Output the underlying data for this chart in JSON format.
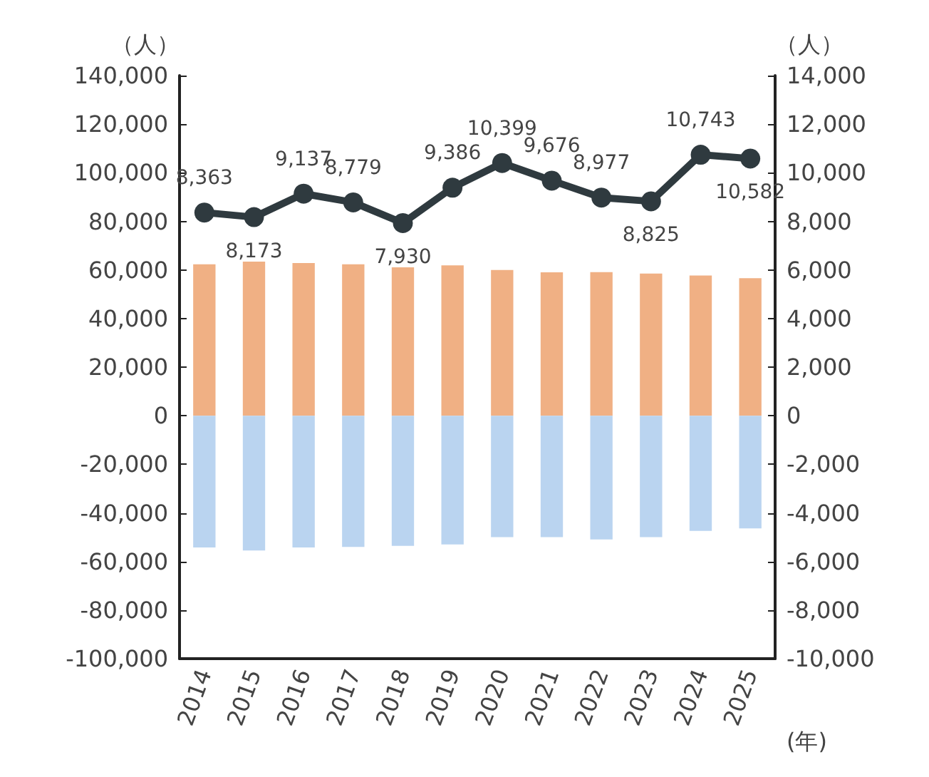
{
  "chart_data": {
    "type": "bar",
    "ylabel": "（人）",
    "y2label": "（人）",
    "xlabel": "(年)",
    "stacked": true,
    "categories": [
      "2014",
      "2015",
      "2016",
      "2017",
      "2018",
      "2019",
      "2020",
      "2021",
      "2022",
      "2023",
      "2024",
      "2025"
    ],
    "series": [
      {
        "color": "#f0b084",
        "values": [
          62300,
          63400,
          62800,
          62300,
          61100,
          61900,
          60000,
          59000,
          59100,
          58500,
          57700,
          56600
        ]
      },
      {
        "color": "#bad4f0",
        "values": [
          -54200,
          -55500,
          -54200,
          -54000,
          -53600,
          -53000,
          -50000,
          -50000,
          -50900,
          -50000,
          -47400,
          -46400
        ]
      },
      {
        "type": "line",
        "axis": "y2",
        "color": "#2f3a3f",
        "marker": "circle",
        "values": [
          8363,
          8173,
          9137,
          8779,
          7930,
          9386,
          10399,
          9676,
          8977,
          8825,
          10743,
          10582
        ],
        "value_labels": [
          "8,363",
          "8,173",
          "9,137",
          "8,779",
          "7,930",
          "9,386",
          "10,399",
          "9,676",
          "8,977",
          "8,825",
          "10,743",
          "10,582"
        ]
      }
    ],
    "ylim": [
      -100000,
      140000
    ],
    "yticks": [
      {
        "value": -100000,
        "label": "-100,000"
      },
      {
        "value": -80000,
        "label": "-80,000"
      },
      {
        "value": -60000,
        "label": "-60,000"
      },
      {
        "value": -40000,
        "label": "-40,000"
      },
      {
        "value": -20000,
        "label": "-20,000"
      },
      0,
      {
        "value": 20000,
        "label": "20,000"
      },
      {
        "value": 40000,
        "label": "40,000"
      },
      {
        "value": 60000,
        "label": "60,000"
      },
      {
        "value": 80000,
        "label": "80,000"
      },
      {
        "value": 100000,
        "label": "100,000"
      },
      {
        "value": 120000,
        "label": "120,000"
      },
      {
        "value": 140000,
        "label": "140,000"
      }
    ],
    "y2lim": [
      -10000,
      14000
    ],
    "y2ticks": [
      {
        "value": -10000,
        "label": "-10,000"
      },
      {
        "value": -8000,
        "label": "-8,000"
      },
      {
        "value": -6000,
        "label": "-6,000"
      },
      {
        "value": -4000,
        "label": "-4,000"
      },
      {
        "value": -2000,
        "label": "-2,000"
      },
      0,
      {
        "value": 2000,
        "label": "2,000"
      },
      {
        "value": 4000,
        "label": "4,000"
      },
      {
        "value": 6000,
        "label": "6,000"
      },
      {
        "value": 8000,
        "label": "8,000"
      },
      {
        "value": 10000,
        "label": "10,000"
      },
      {
        "value": 12000,
        "label": "12,000"
      },
      {
        "value": 14000,
        "label": "14,000"
      }
    ],
    "grid": false
  }
}
